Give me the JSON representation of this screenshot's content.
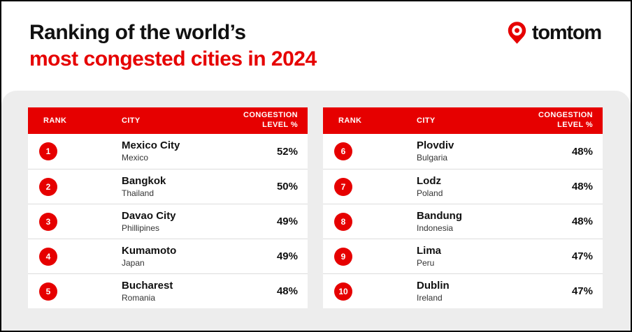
{
  "header": {
    "title_line1": "Ranking of the world’s",
    "title_line2": "most congested cities in 2024",
    "logo": {
      "text": "tomtom",
      "icon": "tomtom-pin-icon"
    }
  },
  "table_header": {
    "rank": "RANK",
    "city": "CITY",
    "congestion_line1": "CONGESTION",
    "congestion_line2": "LEVEL %"
  },
  "colors": {
    "brand_red": "#e60000",
    "panel_gray": "#ededed",
    "row_white": "#ffffff",
    "text_dark": "#111111"
  },
  "chart_data": {
    "type": "table",
    "title": "Ranking of the world’s most congested cities in 2024",
    "columns": [
      "RANK",
      "CITY",
      "CONGESTION LEVEL %"
    ],
    "tables": [
      {
        "name": "ranks-1-5",
        "rows": [
          {
            "rank": "1",
            "city": "Mexico City",
            "country": "Mexico",
            "congestion_level": "52%"
          },
          {
            "rank": "2",
            "city": "Bangkok",
            "country": "Thailand",
            "congestion_level": "50%"
          },
          {
            "rank": "3",
            "city": "Davao City",
            "country": "Phillipines",
            "congestion_level": "49%"
          },
          {
            "rank": "4",
            "city": "Kumamoto",
            "country": "Japan",
            "congestion_level": "49%"
          },
          {
            "rank": "5",
            "city": "Bucharest",
            "country": "Romania",
            "congestion_level": "48%"
          }
        ]
      },
      {
        "name": "ranks-6-10",
        "rows": [
          {
            "rank": "6",
            "city": "Plovdiv",
            "country": "Bulgaria",
            "congestion_level": "48%"
          },
          {
            "rank": "7",
            "city": "Lodz",
            "country": "Poland",
            "congestion_level": "48%"
          },
          {
            "rank": "8",
            "city": "Bandung",
            "country": "Indonesia",
            "congestion_level": "48%"
          },
          {
            "rank": "9",
            "city": "Lima",
            "country": "Peru",
            "congestion_level": "47%"
          },
          {
            "rank": "10",
            "city": "Dublin",
            "country": "Ireland",
            "congestion_level": "47%"
          }
        ]
      }
    ]
  }
}
